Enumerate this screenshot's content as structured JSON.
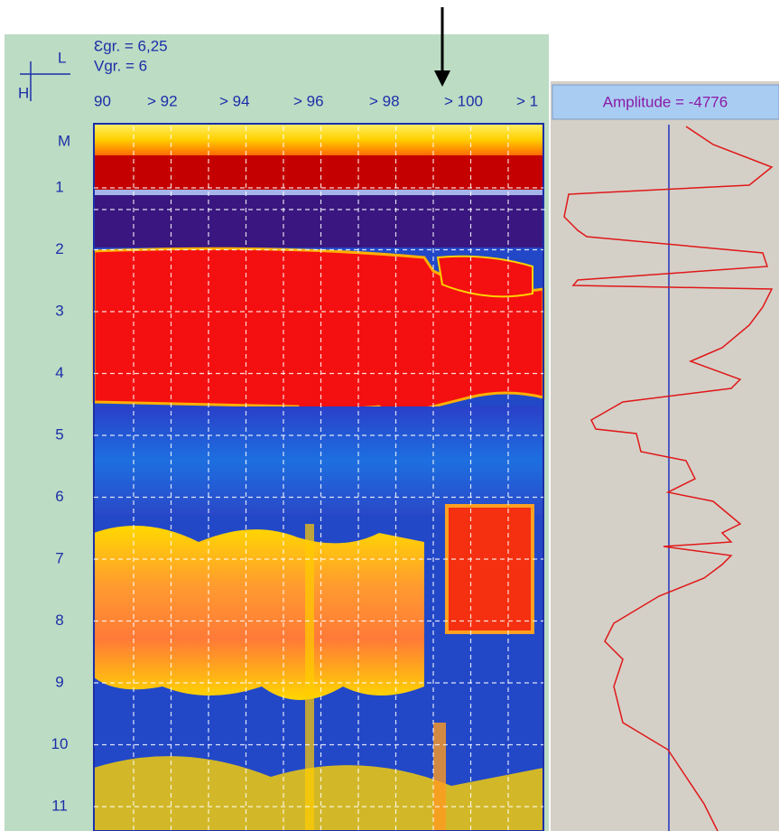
{
  "params": {
    "epsilon": "Ɛgr. = 6,25",
    "velocity": "Vgr. = 6"
  },
  "axes_icon": {
    "l": "L",
    "h": "H"
  },
  "x_labels": [
    "90",
    "> 92",
    "> 94",
    "> 96",
    "> 98",
    "> 100",
    "> 1"
  ],
  "depth_unit": "M",
  "depth_labels": [
    "1",
    "2",
    "3",
    "4",
    "5",
    "6",
    "7",
    "8",
    "9",
    "10",
    "11"
  ],
  "trace_panel": {
    "header": "Amplitude = -4776"
  }
}
